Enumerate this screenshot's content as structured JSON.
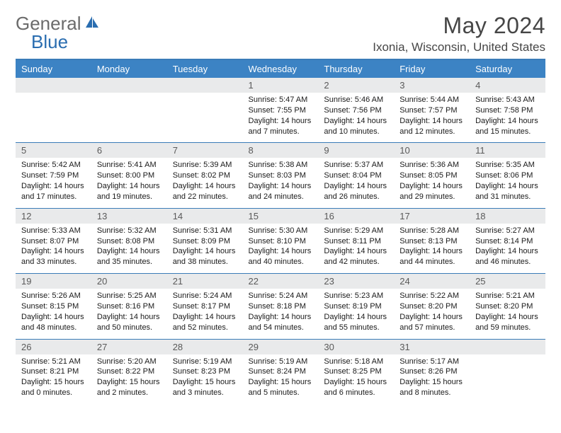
{
  "logo": {
    "text1": "General",
    "text2": "Blue"
  },
  "title": "May 2024",
  "location": "Ixonia, Wisconsin, United States",
  "colors": {
    "header_bg": "#3c83c4",
    "header_border": "#3a7cb8",
    "daynum_bg": "#e9eaeb",
    "text": "#1a1a1a",
    "title_color": "#464646"
  },
  "day_headers": [
    "Sunday",
    "Monday",
    "Tuesday",
    "Wednesday",
    "Thursday",
    "Friday",
    "Saturday"
  ],
  "weeks": [
    [
      null,
      null,
      null,
      {
        "n": "1",
        "sr": "5:47 AM",
        "ss": "7:55 PM",
        "dl": "14 hours and 7 minutes."
      },
      {
        "n": "2",
        "sr": "5:46 AM",
        "ss": "7:56 PM",
        "dl": "14 hours and 10 minutes."
      },
      {
        "n": "3",
        "sr": "5:44 AM",
        "ss": "7:57 PM",
        "dl": "14 hours and 12 minutes."
      },
      {
        "n": "4",
        "sr": "5:43 AM",
        "ss": "7:58 PM",
        "dl": "14 hours and 15 minutes."
      }
    ],
    [
      {
        "n": "5",
        "sr": "5:42 AM",
        "ss": "7:59 PM",
        "dl": "14 hours and 17 minutes."
      },
      {
        "n": "6",
        "sr": "5:41 AM",
        "ss": "8:00 PM",
        "dl": "14 hours and 19 minutes."
      },
      {
        "n": "7",
        "sr": "5:39 AM",
        "ss": "8:02 PM",
        "dl": "14 hours and 22 minutes."
      },
      {
        "n": "8",
        "sr": "5:38 AM",
        "ss": "8:03 PM",
        "dl": "14 hours and 24 minutes."
      },
      {
        "n": "9",
        "sr": "5:37 AM",
        "ss": "8:04 PM",
        "dl": "14 hours and 26 minutes."
      },
      {
        "n": "10",
        "sr": "5:36 AM",
        "ss": "8:05 PM",
        "dl": "14 hours and 29 minutes."
      },
      {
        "n": "11",
        "sr": "5:35 AM",
        "ss": "8:06 PM",
        "dl": "14 hours and 31 minutes."
      }
    ],
    [
      {
        "n": "12",
        "sr": "5:33 AM",
        "ss": "8:07 PM",
        "dl": "14 hours and 33 minutes."
      },
      {
        "n": "13",
        "sr": "5:32 AM",
        "ss": "8:08 PM",
        "dl": "14 hours and 35 minutes."
      },
      {
        "n": "14",
        "sr": "5:31 AM",
        "ss": "8:09 PM",
        "dl": "14 hours and 38 minutes."
      },
      {
        "n": "15",
        "sr": "5:30 AM",
        "ss": "8:10 PM",
        "dl": "14 hours and 40 minutes."
      },
      {
        "n": "16",
        "sr": "5:29 AM",
        "ss": "8:11 PM",
        "dl": "14 hours and 42 minutes."
      },
      {
        "n": "17",
        "sr": "5:28 AM",
        "ss": "8:13 PM",
        "dl": "14 hours and 44 minutes."
      },
      {
        "n": "18",
        "sr": "5:27 AM",
        "ss": "8:14 PM",
        "dl": "14 hours and 46 minutes."
      }
    ],
    [
      {
        "n": "19",
        "sr": "5:26 AM",
        "ss": "8:15 PM",
        "dl": "14 hours and 48 minutes."
      },
      {
        "n": "20",
        "sr": "5:25 AM",
        "ss": "8:16 PM",
        "dl": "14 hours and 50 minutes."
      },
      {
        "n": "21",
        "sr": "5:24 AM",
        "ss": "8:17 PM",
        "dl": "14 hours and 52 minutes."
      },
      {
        "n": "22",
        "sr": "5:24 AM",
        "ss": "8:18 PM",
        "dl": "14 hours and 54 minutes."
      },
      {
        "n": "23",
        "sr": "5:23 AM",
        "ss": "8:19 PM",
        "dl": "14 hours and 55 minutes."
      },
      {
        "n": "24",
        "sr": "5:22 AM",
        "ss": "8:20 PM",
        "dl": "14 hours and 57 minutes."
      },
      {
        "n": "25",
        "sr": "5:21 AM",
        "ss": "8:20 PM",
        "dl": "14 hours and 59 minutes."
      }
    ],
    [
      {
        "n": "26",
        "sr": "5:21 AM",
        "ss": "8:21 PM",
        "dl": "15 hours and 0 minutes."
      },
      {
        "n": "27",
        "sr": "5:20 AM",
        "ss": "8:22 PM",
        "dl": "15 hours and 2 minutes."
      },
      {
        "n": "28",
        "sr": "5:19 AM",
        "ss": "8:23 PM",
        "dl": "15 hours and 3 minutes."
      },
      {
        "n": "29",
        "sr": "5:19 AM",
        "ss": "8:24 PM",
        "dl": "15 hours and 5 minutes."
      },
      {
        "n": "30",
        "sr": "5:18 AM",
        "ss": "8:25 PM",
        "dl": "15 hours and 6 minutes."
      },
      {
        "n": "31",
        "sr": "5:17 AM",
        "ss": "8:26 PM",
        "dl": "15 hours and 8 minutes."
      },
      null
    ]
  ],
  "labels": {
    "sunrise": "Sunrise:",
    "sunset": "Sunset:",
    "daylight": "Daylight:"
  }
}
